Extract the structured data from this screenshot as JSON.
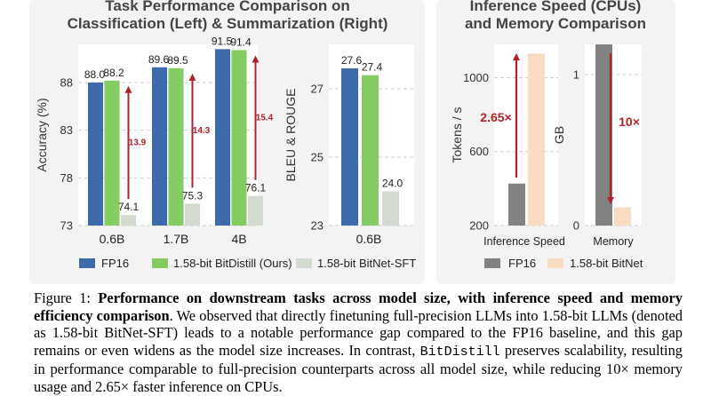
{
  "left_panel": {
    "title_line1": "Task Performance Comparison on",
    "title_line2": "Classification (Left) & Summarization (Right)"
  },
  "right_panel": {
    "title_line1": "Inference Speed (CPUs)",
    "title_line2": "and Memory Comparison"
  },
  "colors": {
    "fp16": "#3d6aaa",
    "bitdistill": "#84cc62",
    "bitnet_sft": "#d3dbd1",
    "gap_arrow": "#b3222a",
    "speed_fp16": "#828282",
    "speed_bitnet": "#f8dcc2",
    "panel_bg": "#f3f3f3"
  },
  "legend_left": [
    "FP16",
    "1.58-bit BitDistill (Ours)",
    "1.58-bit BitNet-SFT"
  ],
  "legend_right": [
    "FP16",
    "1.58-bit BitNet"
  ],
  "chart_data": [
    {
      "type": "bar",
      "ylabel": "Accuracy (%)",
      "ylim": [
        73,
        92
      ],
      "yticks": [
        73,
        78,
        83,
        88
      ],
      "categories": [
        "0.6B",
        "1.7B",
        "4B"
      ],
      "series": [
        {
          "name": "FP16",
          "values": [
            88.0,
            89.6,
            91.5
          ],
          "labels": [
            "88.0",
            "89.6",
            "91.5"
          ]
        },
        {
          "name": "1.58-bit BitDistill (Ours)",
          "values": [
            88.2,
            89.5,
            91.4
          ],
          "labels": [
            "88.2",
            "89.5",
            "91.4"
          ]
        },
        {
          "name": "1.58-bit BitNet-SFT",
          "values": [
            74.1,
            75.3,
            76.1
          ],
          "labels": [
            "74.1",
            "75.3",
            "76.1"
          ]
        }
      ],
      "gaps": [
        "13.9",
        "14.3",
        "15.4"
      ]
    },
    {
      "type": "bar",
      "ylabel": "BLEU & ROUGE",
      "ylim": [
        23,
        28.3
      ],
      "yticks": [
        23,
        25,
        27
      ],
      "categories": [
        "0.6B"
      ],
      "series": [
        {
          "name": "FP16",
          "values": [
            27.6
          ],
          "labels": [
            "27.6"
          ]
        },
        {
          "name": "1.58-bit BitDistill (Ours)",
          "values": [
            27.4
          ],
          "labels": [
            "27.4"
          ]
        },
        {
          "name": "1.58-bit BitNet-SFT",
          "values": [
            24.0
          ],
          "labels": [
            "24.0"
          ]
        }
      ]
    },
    {
      "type": "bar",
      "ylabel": "Tokens / s",
      "ylim": [
        200,
        1180
      ],
      "yticks": [
        200,
        600,
        1000
      ],
      "categories": [
        "Inference Speed"
      ],
      "series": [
        {
          "name": "FP16",
          "values": [
            427
          ]
        },
        {
          "name": "1.58-bit BitNet",
          "values": [
            1130
          ]
        }
      ],
      "annotation": "2.65×"
    },
    {
      "type": "bar",
      "ylabel": "GB",
      "ylim": [
        0,
        1.2
      ],
      "yticks": [
        0,
        1
      ],
      "categories": [
        "Memory"
      ],
      "series": [
        {
          "name": "FP16",
          "values": [
            1.2
          ]
        },
        {
          "name": "1.58-bit BitNet",
          "values": [
            0.12
          ]
        }
      ],
      "annotation": "10×"
    }
  ],
  "caption": {
    "label": "Figure 1:",
    "bold": "Performance on downstream tasks across model size, with inference speed and memory efficiency comparison",
    "text1": ". We observed that directly finetuning full-precision LLMs into 1.58-bit LLMs (denoted as 1.58-bit BitNet-SFT) leads to a notable performance gap compared to the FP16 baseline, and this gap remains or even widens as the model size increases. In contrast, ",
    "mono": "BitDistill",
    "text2": " preserves scalability, resulting in performance comparable to full-precision counterparts across all model size, while reducing 10× memory usage and 2.65× faster inference on CPUs."
  }
}
